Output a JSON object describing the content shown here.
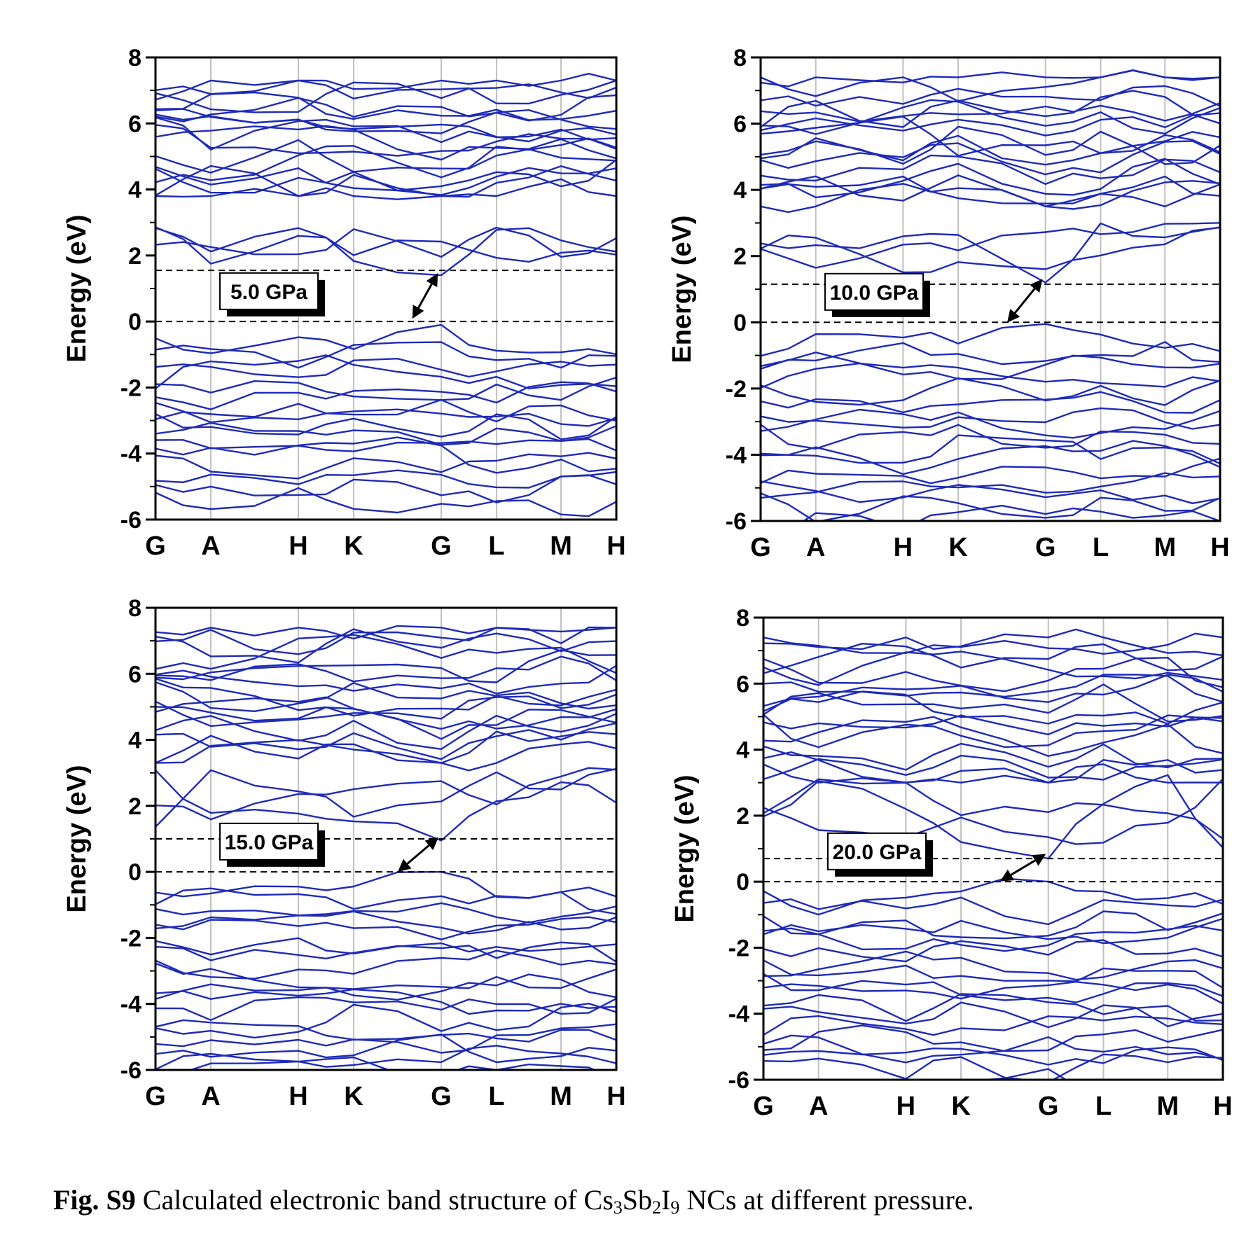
{
  "caption": {
    "label": "Fig. S9",
    "text_before": " Calculated electronic band structure of Cs",
    "sub1": "3",
    "text_mid1": "Sb",
    "sub2": "2",
    "text_mid2": "I",
    "sub3": "9",
    "text_after": " NCs at different pressure."
  },
  "colors": {
    "band": "#1f2bb8",
    "grid": "#c0c0c0",
    "axis": "#000000"
  },
  "chart_data": [
    {
      "type": "line",
      "title": "",
      "ylabel": "Energy (eV)",
      "xlabel": "",
      "ylim": [
        -6,
        8
      ],
      "yticks": [
        -6,
        -4,
        -2,
        0,
        2,
        4,
        6,
        8
      ],
      "kpoints": [
        "G",
        "A",
        "H",
        "K",
        "G",
        "L",
        "M",
        "H"
      ],
      "kpoint_positions": [
        0,
        0.12,
        0.31,
        0.43,
        0.62,
        0.74,
        0.88,
        1.0
      ],
      "pressure_label": "5.0 GPa",
      "fermi_level": 0,
      "cbm_level": 1.55,
      "arrow": {
        "from": {
          "k": 0.56,
          "e": 0.15
        },
        "to": {
          "k": 0.61,
          "e": 1.4
        }
      },
      "band_groups": {
        "valence_count": 16,
        "valence_top": -0.1,
        "valence_bottom": -5.3,
        "conduction_low": [
          1.4,
          2.9
        ],
        "conduction_high": [
          3.9,
          7.3
        ]
      }
    },
    {
      "type": "line",
      "title": "",
      "ylabel": "Energy (eV)",
      "xlabel": "",
      "ylim": [
        -6,
        8
      ],
      "yticks": [
        -6,
        -4,
        -2,
        0,
        2,
        4,
        6,
        8
      ],
      "kpoints": [
        "G",
        "A",
        "H",
        "K",
        "G",
        "L",
        "M",
        "H"
      ],
      "kpoint_positions": [
        0,
        0.12,
        0.31,
        0.43,
        0.62,
        0.74,
        0.88,
        1.0
      ],
      "pressure_label": "10.0 GPa",
      "fermi_level": 0,
      "cbm_level": 1.15,
      "arrow": {
        "from": {
          "k": 0.54,
          "e": 0.05
        },
        "to": {
          "k": 0.61,
          "e": 1.25
        }
      },
      "band_groups": {
        "valence_count": 16,
        "valence_top": -0.05,
        "valence_bottom": -5.9,
        "conduction_low": [
          1.2,
          3.1
        ],
        "conduction_high": [
          3.6,
          7.4
        ]
      }
    },
    {
      "type": "line",
      "title": "",
      "ylabel": "Energy (eV)",
      "xlabel": "",
      "ylim": [
        -6,
        8
      ],
      "yticks": [
        -6,
        -4,
        -2,
        0,
        2,
        4,
        6,
        8
      ],
      "kpoints": [
        "G",
        "A",
        "H",
        "K",
        "G",
        "L",
        "M",
        "H"
      ],
      "kpoint_positions": [
        0,
        0.12,
        0.31,
        0.43,
        0.62,
        0.74,
        0.88,
        1.0
      ],
      "pressure_label": "15.0 GPa",
      "fermi_level": 0,
      "cbm_level": 1.0,
      "arrow": {
        "from": {
          "k": 0.53,
          "e": 0.05
        },
        "to": {
          "k": 0.61,
          "e": 1.0
        }
      },
      "band_groups": {
        "valence_count": 18,
        "valence_top": 0.0,
        "valence_bottom": -6.0,
        "conduction_low": [
          0.95,
          3.2
        ],
        "conduction_high": [
          3.4,
          7.4
        ]
      }
    },
    {
      "type": "line",
      "title": "",
      "ylabel": "Energy (eV)",
      "xlabel": "",
      "ylim": [
        -6,
        8
      ],
      "yticks": [
        -6,
        -4,
        -2,
        0,
        2,
        4,
        6,
        8
      ],
      "kpoints": [
        "G",
        "A",
        "H",
        "K",
        "G",
        "L",
        "M",
        "H"
      ],
      "kpoint_positions": [
        0,
        0.12,
        0.31,
        0.43,
        0.62,
        0.74,
        0.88,
        1.0
      ],
      "pressure_label": "20.0 GPa",
      "fermi_level": 0,
      "cbm_level": 0.7,
      "arrow": {
        "from": {
          "k": 0.52,
          "e": 0.05
        },
        "to": {
          "k": 0.61,
          "e": 0.8
        }
      },
      "band_groups": {
        "valence_count": 18,
        "valence_top": 0.0,
        "valence_bottom": -6.0,
        "conduction_low": [
          0.7,
          3.3
        ],
        "conduction_high": [
          3.1,
          7.4
        ]
      }
    }
  ]
}
